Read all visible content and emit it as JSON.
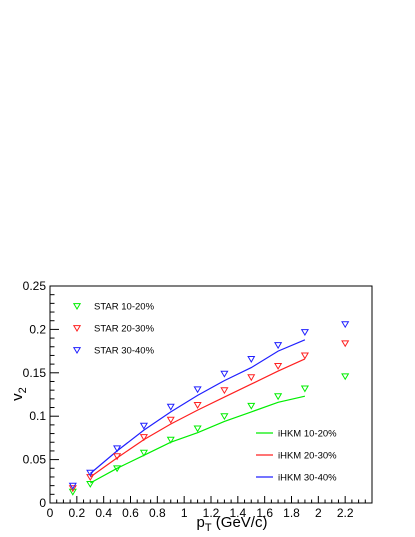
{
  "chart_data": {
    "type": "scatter",
    "xlabel": "p",
    "xlabel_sub": "T",
    "xlabel_unit": " (GeV/c)",
    "ylabel": "v",
    "ylabel_sub": "2",
    "xlim": [
      0,
      2.4
    ],
    "ylim": [
      0,
      0.25
    ],
    "xticks": [
      0,
      0.2,
      0.4,
      0.6,
      0.8,
      1,
      1.2,
      1.4,
      1.6,
      1.8,
      2,
      2.2
    ],
    "xtick_labels": [
      "0",
      "0.2",
      "0.4",
      "0.6",
      "0.8",
      "1",
      "1.2",
      "1.4",
      "1.6",
      "1.8",
      "2",
      "2.2"
    ],
    "yticks": [
      0,
      0.05,
      0.1,
      0.15,
      0.2,
      0.25
    ],
    "ytick_labels": [
      "0",
      "0.05",
      "0.1",
      "0.15",
      "0.2",
      "0.25"
    ],
    "grid": false,
    "markers": [
      {
        "name": "STAR 10-20%",
        "color": "#00ee00",
        "x": [
          0.17,
          0.3,
          0.5,
          0.7,
          0.9,
          1.1,
          1.3,
          1.5,
          1.7,
          1.9,
          2.2
        ],
        "y": [
          0.013,
          0.022,
          0.04,
          0.058,
          0.073,
          0.086,
          0.1,
          0.112,
          0.123,
          0.132,
          0.146
        ]
      },
      {
        "name": "STAR 20-30%",
        "color": "#ff2020",
        "x": [
          0.17,
          0.3,
          0.5,
          0.7,
          0.9,
          1.1,
          1.3,
          1.5,
          1.7,
          1.9,
          2.2
        ],
        "y": [
          0.017,
          0.03,
          0.054,
          0.076,
          0.096,
          0.113,
          0.13,
          0.145,
          0.158,
          0.17,
          0.184
        ]
      },
      {
        "name": "STAR 30-40%",
        "color": "#2020ff",
        "x": [
          0.17,
          0.3,
          0.5,
          0.7,
          0.9,
          1.1,
          1.3,
          1.5,
          1.7,
          1.9,
          2.2
        ],
        "y": [
          0.02,
          0.035,
          0.063,
          0.089,
          0.111,
          0.131,
          0.149,
          0.166,
          0.182,
          0.197,
          0.206
        ]
      }
    ],
    "lines": [
      {
        "name": "iHKM 10-20%",
        "color": "#00ee00",
        "x": [
          0.3,
          0.5,
          0.7,
          0.9,
          1.1,
          1.3,
          1.5,
          1.7,
          1.9
        ],
        "y": [
          0.023,
          0.04,
          0.055,
          0.07,
          0.081,
          0.094,
          0.105,
          0.116,
          0.123
        ]
      },
      {
        "name": "iHKM 20-30%",
        "color": "#ff2020",
        "x": [
          0.3,
          0.5,
          0.7,
          0.9,
          1.1,
          1.3,
          1.5,
          1.7,
          1.9
        ],
        "y": [
          0.03,
          0.052,
          0.073,
          0.091,
          0.107,
          0.122,
          0.137,
          0.152,
          0.166
        ]
      },
      {
        "name": "iHKM 30-40%",
        "color": "#2020ff",
        "x": [
          0.3,
          0.5,
          0.7,
          0.9,
          1.1,
          1.3,
          1.5,
          1.7,
          1.9
        ],
        "y": [
          0.034,
          0.06,
          0.084,
          0.105,
          0.124,
          0.141,
          0.156,
          0.175,
          0.188
        ]
      }
    ],
    "marker_legend_position": "top-left",
    "line_legend_position": "bottom-right"
  }
}
